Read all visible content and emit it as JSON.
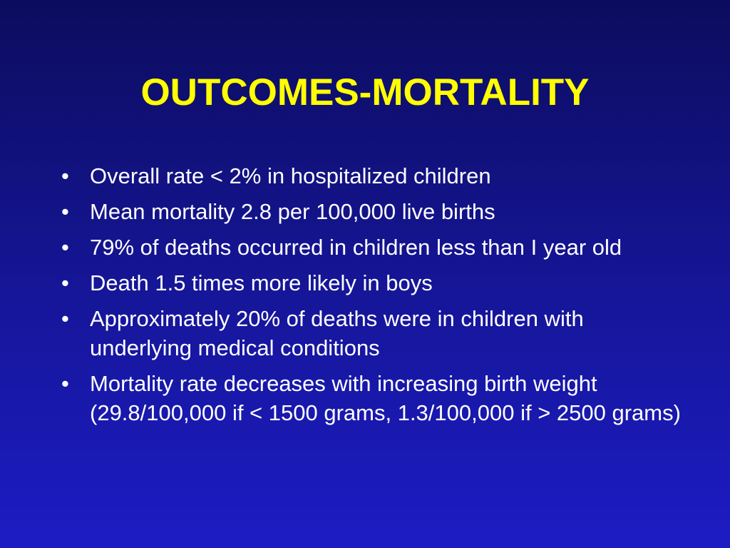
{
  "slide": {
    "title": "OUTCOMES-MORTALITY",
    "bullet_symbol": "•",
    "bullets": [
      "Overall rate < 2% in hospitalized children",
      "Mean mortality 2.8 per 100,000 live births",
      "79% of deaths occurred in children less than I year old",
      "Death 1.5 times more likely in boys",
      "Approximately 20% of deaths were in children with underlying medical conditions",
      "Mortality rate decreases with increasing birth weight (29.8/100,000 if < 1500 grams, 1.3/100,000 if > 2500 grams)"
    ]
  },
  "colors": {
    "background_top": "#0c0c5e",
    "background_bottom": "#1c1cc4",
    "title": "#ffff00",
    "body_text": "#ffffff"
  }
}
